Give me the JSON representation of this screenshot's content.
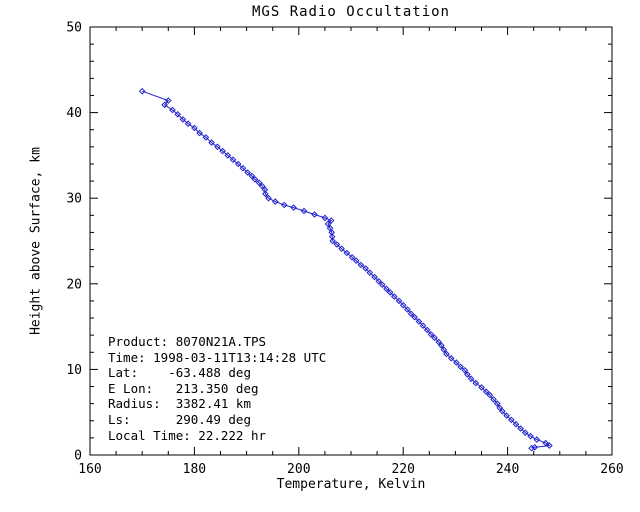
{
  "chart_data": {
    "type": "line",
    "title": "MGS Radio Occultation",
    "xlabel": "Temperature, Kelvin",
    "ylabel": "Height above Surface, km",
    "xlim": [
      160,
      260
    ],
    "ylim": [
      0,
      50
    ],
    "x_ticks": [
      160,
      180,
      200,
      220,
      240,
      260
    ],
    "y_ticks": [
      0,
      10,
      20,
      30,
      40,
      50
    ],
    "x_major_step": 20,
    "x_minor_step": 5,
    "y_major_step": 10,
    "y_minor_step": 2,
    "grid": false,
    "line_color": "#2222cc",
    "axis_color": "#000000",
    "marker": "diamond",
    "series": [
      {
        "name": "temperature-profile",
        "points": [
          [
            170.0,
            42.5
          ],
          [
            175.0,
            41.4
          ],
          [
            174.3,
            40.9
          ],
          [
            175.8,
            40.3
          ],
          [
            176.8,
            39.8
          ],
          [
            177.8,
            39.2
          ],
          [
            178.8,
            38.7
          ],
          [
            180.0,
            38.2
          ],
          [
            181.0,
            37.6
          ],
          [
            182.2,
            37.1
          ],
          [
            183.3,
            36.5
          ],
          [
            184.4,
            36.0
          ],
          [
            185.4,
            35.5
          ],
          [
            186.4,
            35.0
          ],
          [
            187.4,
            34.5
          ],
          [
            188.4,
            34.0
          ],
          [
            189.3,
            33.5
          ],
          [
            190.2,
            33.0
          ],
          [
            191.0,
            32.6
          ],
          [
            191.6,
            32.2
          ],
          [
            192.4,
            31.8
          ],
          [
            193.0,
            31.4
          ],
          [
            193.5,
            31.0
          ],
          [
            193.6,
            30.5
          ],
          [
            194.2,
            30.0
          ],
          [
            195.5,
            29.6
          ],
          [
            197.2,
            29.2
          ],
          [
            199.0,
            28.9
          ],
          [
            201.0,
            28.5
          ],
          [
            203.0,
            28.1
          ],
          [
            205.0,
            27.7
          ],
          [
            206.2,
            27.4
          ],
          [
            205.6,
            27.0
          ],
          [
            206.0,
            26.5
          ],
          [
            206.3,
            26.0
          ],
          [
            206.4,
            25.5
          ],
          [
            206.5,
            25.0
          ],
          [
            207.3,
            24.6
          ],
          [
            208.2,
            24.1
          ],
          [
            209.2,
            23.6
          ],
          [
            210.2,
            23.1
          ],
          [
            211.0,
            22.7
          ],
          [
            211.9,
            22.2
          ],
          [
            212.8,
            21.8
          ],
          [
            213.6,
            21.3
          ],
          [
            214.5,
            20.8
          ],
          [
            215.3,
            20.3
          ],
          [
            216.0,
            19.9
          ],
          [
            216.8,
            19.4
          ],
          [
            217.5,
            19.0
          ],
          [
            218.3,
            18.5
          ],
          [
            219.2,
            18.0
          ],
          [
            220.0,
            17.5
          ],
          [
            220.8,
            17.0
          ],
          [
            221.5,
            16.5
          ],
          [
            222.2,
            16.1
          ],
          [
            223.0,
            15.6
          ],
          [
            223.8,
            15.1
          ],
          [
            224.6,
            14.6
          ],
          [
            225.3,
            14.1
          ],
          [
            226.0,
            13.7
          ],
          [
            226.8,
            13.2
          ],
          [
            227.3,
            12.8
          ],
          [
            227.8,
            12.3
          ],
          [
            228.3,
            11.8
          ],
          [
            229.2,
            11.3
          ],
          [
            230.2,
            10.8
          ],
          [
            231.0,
            10.3
          ],
          [
            231.8,
            9.9
          ],
          [
            232.3,
            9.4
          ],
          [
            233.0,
            8.9
          ],
          [
            233.9,
            8.4
          ],
          [
            235.0,
            7.9
          ],
          [
            235.9,
            7.4
          ],
          [
            236.6,
            7.0
          ],
          [
            237.3,
            6.5
          ],
          [
            238.0,
            6.0
          ],
          [
            238.5,
            5.5
          ],
          [
            239.0,
            5.1
          ],
          [
            239.8,
            4.6
          ],
          [
            240.7,
            4.1
          ],
          [
            241.6,
            3.6
          ],
          [
            242.5,
            3.1
          ],
          [
            243.4,
            2.6
          ],
          [
            244.4,
            2.2
          ],
          [
            245.6,
            1.8
          ],
          [
            247.3,
            1.4
          ],
          [
            248.0,
            1.1
          ],
          [
            245.2,
            0.9
          ],
          [
            244.6,
            0.8
          ]
        ]
      }
    ],
    "annotation_lines": [
      "Product: 8070N21A.TPS",
      "Time: 1998-03-11T13:14:28 UTC",
      "Lat:    -63.488 deg",
      "E Lon:   213.350 deg",
      "Radius:  3382.41 km",
      "Ls:      290.49 deg",
      "Local Time: 22.222 hr"
    ]
  }
}
